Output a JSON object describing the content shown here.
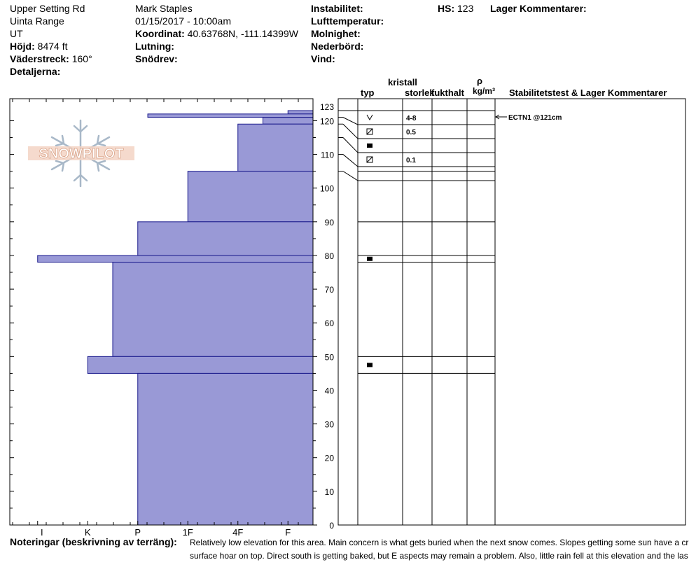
{
  "site": {
    "name": "Upper Setting Rd",
    "range": "Uinta Range",
    "state": "UT",
    "elevation_label": "Höjd:",
    "elevation": "8474 ft",
    "aspect_label": "Väderstreck:",
    "aspect": "160°",
    "details_label": "Detaljerna:"
  },
  "observer": {
    "name": "Mark Staples",
    "datetime": "01/15/2017 - 10:00am",
    "coord_label": "Koordinat:",
    "coord": "40.63768N, -111.14399W",
    "slope_label": "Lutning:",
    "wind_loading_label": "Snödrev:"
  },
  "conditions": {
    "instability_label": "Instabilitet:",
    "air_temp_label": "Lufttemperatur:",
    "sky_label": "Molnighet:",
    "precip_label": "Nederbörd:",
    "wind_label": "Vind:",
    "hs_label": "HS:",
    "hs_value": "123",
    "layer_comments_label": "Lager Kommentarer:"
  },
  "columns": {
    "crystal_label": "kristall",
    "type": "typ",
    "size": "storlek",
    "moisture": "fukthalt",
    "rho": "ρ",
    "density_unit": "kg/m³",
    "stability": "Stabilitetstest & Lager Kommentarer"
  },
  "logo": "SNOWPILOT",
  "notes": {
    "label": "Noteringar (beskrivning av terräng):",
    "line1": "Relatively low elevation for this area. Main concern is what gets buried when the next snow comes. Slopes getting some sun have a cr",
    "line2": "surface hoar on top. Direct south is getting baked, but E aspects may remain a problem. Also, little rain fell at this elevation and the las"
  },
  "stability_test": {
    "label": "ECTN1 @121cm",
    "depth_cm": 121
  },
  "chart_data": {
    "type": "bar",
    "title": "",
    "xlabel": "",
    "ylabel": "",
    "hardness_ticks": [
      "I",
      "K",
      "P",
      "1F",
      "4F",
      "F"
    ],
    "depth_ticks": [
      123,
      120,
      110,
      100,
      90,
      80,
      70,
      60,
      50,
      40,
      30,
      20,
      10,
      0
    ],
    "ylim": [
      0,
      123
    ],
    "hardness_scale_note": "hardness index 0=F, 1=4F, 2=1F, 3=P, 4=K, 5=I",
    "layers": [
      {
        "top": 123,
        "bottom": 122,
        "hardness": 0.5
      },
      {
        "top": 122,
        "bottom": 121,
        "hardness": 3.3
      },
      {
        "top": 121,
        "bottom": 119,
        "hardness": 1.0
      },
      {
        "top": 119,
        "bottom": 105,
        "hardness": 1.5
      },
      {
        "top": 105,
        "bottom": 90,
        "hardness": 2.5
      },
      {
        "top": 90,
        "bottom": 80,
        "hardness": 3.5
      },
      {
        "top": 80,
        "bottom": 78,
        "hardness": 5.5
      },
      {
        "top": 78,
        "bottom": 50,
        "hardness": 4.0
      },
      {
        "top": 50,
        "bottom": 45,
        "hardness": 4.5
      },
      {
        "top": 45,
        "bottom": 0,
        "hardness": 3.5
      }
    ],
    "crystal_rows": [
      {
        "top": 123,
        "bottom": 121,
        "grain": "v",
        "size": "4-8"
      },
      {
        "top": 121,
        "bottom": 119,
        "grain": "box",
        "size": "0.5"
      },
      {
        "top": 119,
        "bottom": 115,
        "grain": "square",
        "size": ""
      },
      {
        "top": 115,
        "bottom": 110,
        "grain": "box",
        "size": "0.1"
      },
      {
        "top": 110,
        "bottom": 105,
        "grain": "",
        "size": ""
      },
      {
        "top": 105,
        "bottom": 90,
        "grain": "",
        "size": ""
      },
      {
        "top": 90,
        "bottom": 80,
        "grain": "",
        "size": ""
      },
      {
        "top": 80,
        "bottom": 78,
        "grain": "square",
        "size": ""
      },
      {
        "top": 78,
        "bottom": 50,
        "grain": "",
        "size": ""
      },
      {
        "top": 50,
        "bottom": 45,
        "grain": "square",
        "size": ""
      },
      {
        "top": 45,
        "bottom": 0,
        "grain": "",
        "size": ""
      }
    ],
    "colors": {
      "bar_fill": "#9999d6",
      "bar_stroke": "#1a1a8c"
    }
  }
}
